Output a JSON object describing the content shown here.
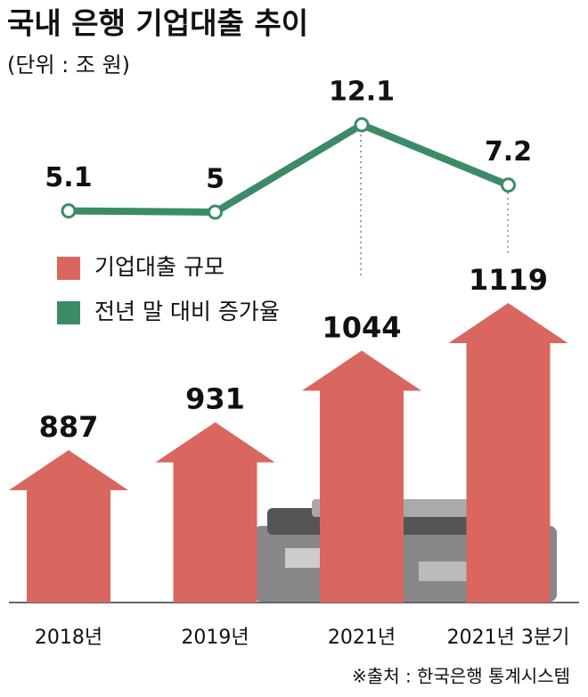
{
  "chart_data": {
    "type": "bar",
    "title": "국내 은행 기업대출 추이",
    "subtitle": "(단위 : 조 원)",
    "source": "※출처 : 한국은행 통계시스템",
    "categories": [
      "2018년",
      "2019년",
      "2021년",
      "2021년 3분기"
    ],
    "series": [
      {
        "name": "기업대출 규모",
        "type": "bar",
        "color": "#d9675f",
        "values": [
          887,
          931,
          1044,
          1119
        ]
      },
      {
        "name": "전년 말 대비 증가율",
        "type": "line",
        "color": "#3b8c66",
        "values": [
          5.1,
          5,
          12.1,
          7.2
        ]
      }
    ]
  }
}
